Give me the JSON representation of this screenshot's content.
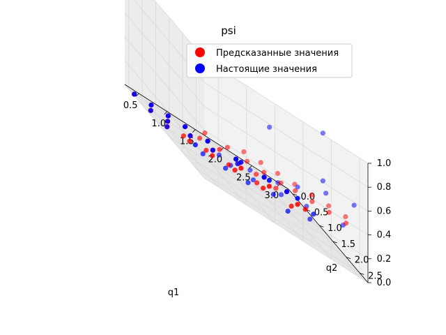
{
  "chart_data": {
    "type": "scatter",
    "projection": "3d",
    "title": "psi",
    "xlabel": "q1",
    "ylabel": "q2",
    "zlabel": "",
    "xlim": [
      0.25,
      3.15
    ],
    "ylim": [
      -0.15,
      2.8
    ],
    "zlim": [
      0.0,
      1.0
    ],
    "xticks": [
      0.5,
      1.0,
      1.5,
      2.0,
      2.5,
      3.0
    ],
    "yticks": [
      0.0,
      0.5,
      1.0,
      1.5,
      2.0,
      2.5
    ],
    "zticks": [
      0.0,
      0.2,
      0.4,
      0.6,
      0.8,
      1.0
    ],
    "xtick_labels": [
      "0.5",
      "1.0",
      "1.5",
      "2.0",
      "2.5",
      "3.0"
    ],
    "ytick_labels": [
      "0.0",
      "0.5",
      "1.0",
      "1.5",
      "2.0",
      "2.5"
    ],
    "ztick_labels": [
      "0.0",
      "0.2",
      "0.4",
      "0.6",
      "0.8",
      "1.0"
    ],
    "grid": true,
    "legend": {
      "placement": "top-right"
    },
    "colors": {
      "predicted": "#ff0000",
      "actual": "#0000ff"
    },
    "series": [
      {
        "name": "Предсказанные значения",
        "color": "#ff0000",
        "points": [
          [
            0.3,
            0.1,
            0.0
          ],
          [
            0.6,
            0.1,
            0.0
          ],
          [
            0.9,
            0.1,
            0.0
          ],
          [
            1.2,
            0.1,
            0.0
          ],
          [
            1.6,
            0.1,
            0.0
          ],
          [
            2.1,
            0.1,
            0.0
          ],
          [
            2.6,
            0.1,
            0.0
          ],
          [
            3.0,
            0.1,
            0.0
          ],
          [
            0.4,
            0.5,
            0.0
          ],
          [
            0.7,
            0.5,
            0.0
          ],
          [
            1.1,
            0.5,
            0.0
          ],
          [
            1.5,
            0.5,
            0.0
          ],
          [
            2.0,
            0.5,
            0.0
          ],
          [
            2.5,
            0.5,
            0.0
          ],
          [
            3.0,
            0.5,
            0.0
          ],
          [
            0.5,
            0.9,
            0.0
          ],
          [
            0.9,
            0.9,
            0.0
          ],
          [
            1.3,
            0.9,
            0.0
          ],
          [
            1.7,
            0.9,
            0.0
          ],
          [
            2.2,
            0.9,
            0.0
          ],
          [
            2.7,
            0.9,
            0.0
          ],
          [
            0.6,
            1.3,
            0.06
          ],
          [
            1.0,
            1.3,
            0.06
          ],
          [
            1.4,
            1.3,
            0.06
          ],
          [
            1.9,
            1.3,
            0.06
          ],
          [
            2.9,
            1.0,
            0.06
          ],
          [
            0.6,
            1.9,
            0.2
          ],
          [
            1.0,
            1.8,
            0.2
          ],
          [
            1.3,
            1.9,
            0.2
          ],
          [
            1.6,
            1.9,
            0.2
          ],
          [
            1.9,
            2.0,
            0.2
          ],
          [
            0.5,
            2.3,
            0.32
          ],
          [
            0.9,
            2.3,
            0.32
          ],
          [
            1.2,
            2.4,
            0.32
          ],
          [
            1.5,
            2.4,
            0.32
          ],
          [
            1.8,
            2.4,
            0.32
          ],
          [
            2.1,
            2.3,
            0.32
          ],
          [
            2.4,
            2.3,
            0.32
          ],
          [
            2.7,
            2.3,
            0.32
          ],
          [
            3.0,
            2.3,
            0.32
          ],
          [
            1.0,
            2.7,
            0.42
          ],
          [
            1.3,
            2.7,
            0.42
          ],
          [
            1.6,
            2.7,
            0.42
          ],
          [
            1.9,
            2.7,
            0.42
          ],
          [
            2.2,
            2.7,
            0.42
          ],
          [
            2.5,
            2.7,
            0.42
          ],
          [
            2.8,
            2.7,
            0.42
          ]
        ]
      },
      {
        "name": "Настоящие значения",
        "color": "#0000ff",
        "points": [
          [
            0.3,
            0.1,
            0.0
          ],
          [
            0.6,
            0.1,
            0.0
          ],
          [
            0.9,
            0.1,
            0.0
          ],
          [
            1.2,
            0.1,
            0.0
          ],
          [
            1.6,
            0.1,
            0.0
          ],
          [
            2.1,
            0.1,
            0.0
          ],
          [
            2.6,
            0.1,
            0.0
          ],
          [
            3.0,
            0.1,
            0.0
          ],
          [
            0.4,
            0.5,
            0.0
          ],
          [
            0.7,
            0.5,
            0.0
          ],
          [
            1.1,
            0.5,
            0.0
          ],
          [
            1.5,
            0.5,
            0.0
          ],
          [
            2.0,
            0.5,
            0.05
          ],
          [
            2.5,
            0.5,
            0.05
          ],
          [
            3.0,
            0.5,
            0.05
          ],
          [
            0.5,
            0.9,
            0.0
          ],
          [
            1.0,
            0.9,
            0.0
          ],
          [
            1.7,
            1.0,
            0.08
          ],
          [
            2.4,
            1.4,
            0.0
          ],
          [
            2.9,
            1.3,
            0.1
          ],
          [
            0.8,
            1.6,
            0.05
          ],
          [
            1.2,
            1.6,
            0.05
          ],
          [
            1.6,
            1.6,
            0.05
          ],
          [
            2.0,
            1.7,
            0.1
          ],
          [
            2.6,
            1.8,
            0.1
          ],
          [
            1.1,
            2.0,
            0.15
          ],
          [
            1.5,
            2.0,
            0.15
          ],
          [
            1.9,
            2.2,
            0.2
          ],
          [
            2.3,
            2.3,
            0.25
          ],
          [
            2.9,
            2.4,
            0.3
          ],
          [
            0.8,
            2.2,
            0.2
          ],
          [
            1.3,
            2.3,
            0.25
          ],
          [
            2.0,
            2.6,
            0.4
          ],
          [
            2.5,
            2.6,
            0.5
          ],
          [
            3.0,
            2.6,
            0.55
          ],
          [
            1.7,
            2.5,
            0.32
          ],
          [
            2.4,
            2.7,
            0.6
          ],
          [
            1.5,
            2.6,
            0.75
          ],
          [
            2.4,
            2.7,
            1.0
          ]
        ]
      }
    ]
  }
}
